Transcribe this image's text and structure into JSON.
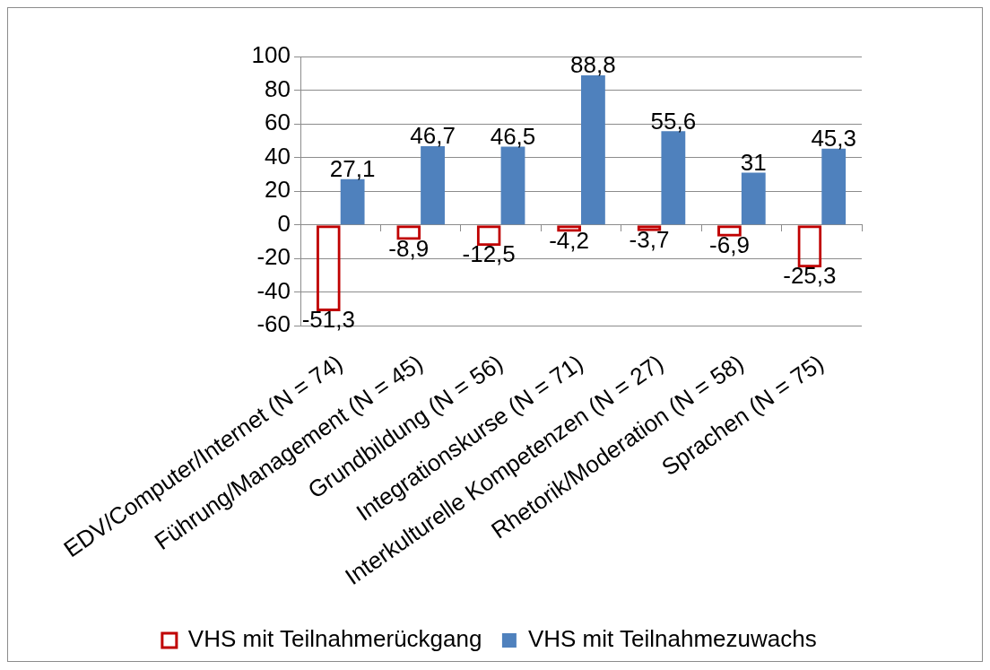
{
  "chart_data": {
    "type": "bar",
    "categories": [
      "EDV/Computer/Internet (N = 74)",
      "Führung/Management (N = 45)",
      "Grundbildung (N = 56)",
      "Integrationskurse (N = 71)",
      "Interkulturelle Kompetenzen (N = 27)",
      "Rhetorik/Moderation (N = 58)",
      "Sprachen (N = 75)"
    ],
    "series": [
      {
        "name": "VHS mit Teilnahmerückgang",
        "color": "#c00000",
        "values": [
          -51.3,
          -8.9,
          -12.5,
          -4.2,
          -3.7,
          -6.9,
          -25.3
        ],
        "value_labels": [
          "-51,3",
          "-8,9",
          "-12,5",
          "-4,2",
          "-3,7",
          "-6,9",
          "-25,3"
        ]
      },
      {
        "name": "VHS mit Teilnahmezuwachs",
        "color": "#4f81bd",
        "values": [
          27.1,
          46.7,
          46.5,
          88.8,
          55.6,
          31,
          45.3
        ],
        "value_labels": [
          "27,1",
          "46,7",
          "46,5",
          "88,8",
          "55,6",
          "31",
          "45,3"
        ]
      }
    ],
    "ylim": [
      -60,
      100
    ],
    "yticks": [
      -60,
      -40,
      -20,
      0,
      20,
      40,
      60,
      80,
      100
    ],
    "grid": "y",
    "legend": "bottom"
  }
}
